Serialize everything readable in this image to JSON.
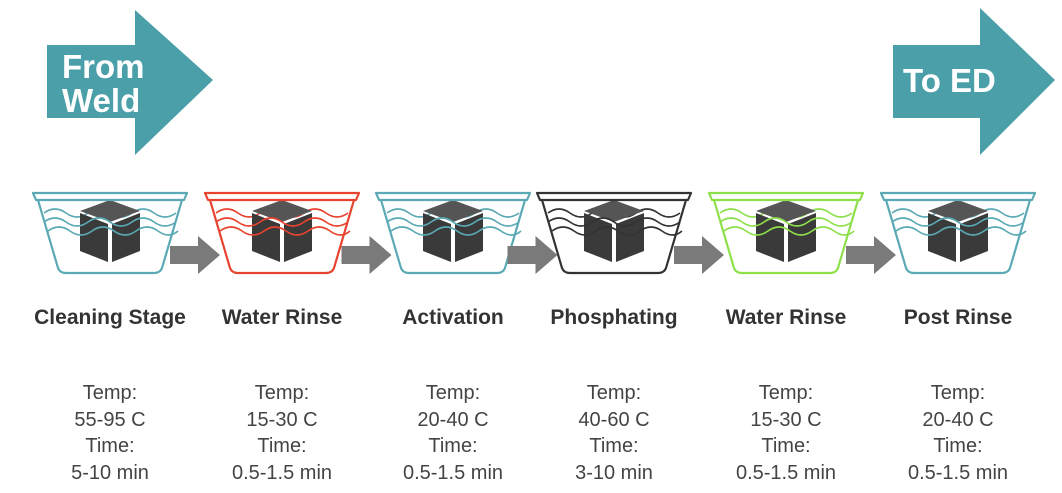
{
  "start_arrow": {
    "label": "From Weld"
  },
  "end_arrow": {
    "label": "To ED"
  },
  "stages": [
    {
      "name": "Cleaning Stage",
      "color": "#5aa9b5",
      "temp_label": "Temp:",
      "temp": "55-95 C",
      "time_label": "Time:",
      "time": "5-10 min"
    },
    {
      "name": "Water Rinse",
      "color": "#e8432e",
      "temp_label": "Temp:",
      "temp": "15-30 C",
      "time_label": "Time:",
      "time": "0.5-1.5 min"
    },
    {
      "name": "Activation",
      "color": "#5aa9b5",
      "temp_label": "Temp:",
      "temp": "20-40 C",
      "time_label": "Time:",
      "time": "0.5-1.5 min"
    },
    {
      "name": "Phosphating",
      "color": "#333333",
      "temp_label": "Temp:",
      "temp": "40-60 C",
      "time_label": "Time:",
      "time": "3-10 min"
    },
    {
      "name": "Water Rinse",
      "color": "#8ee04a",
      "temp_label": "Temp:",
      "temp": "15-30 C",
      "time_label": "Time:",
      "time": "0.5-1.5 min"
    },
    {
      "name": "Post Rinse",
      "color": "#5aa9b5",
      "temp_label": "Temp:",
      "temp": "20-40 C",
      "time_label": "Time:",
      "time": "0.5-1.5 min"
    }
  ]
}
